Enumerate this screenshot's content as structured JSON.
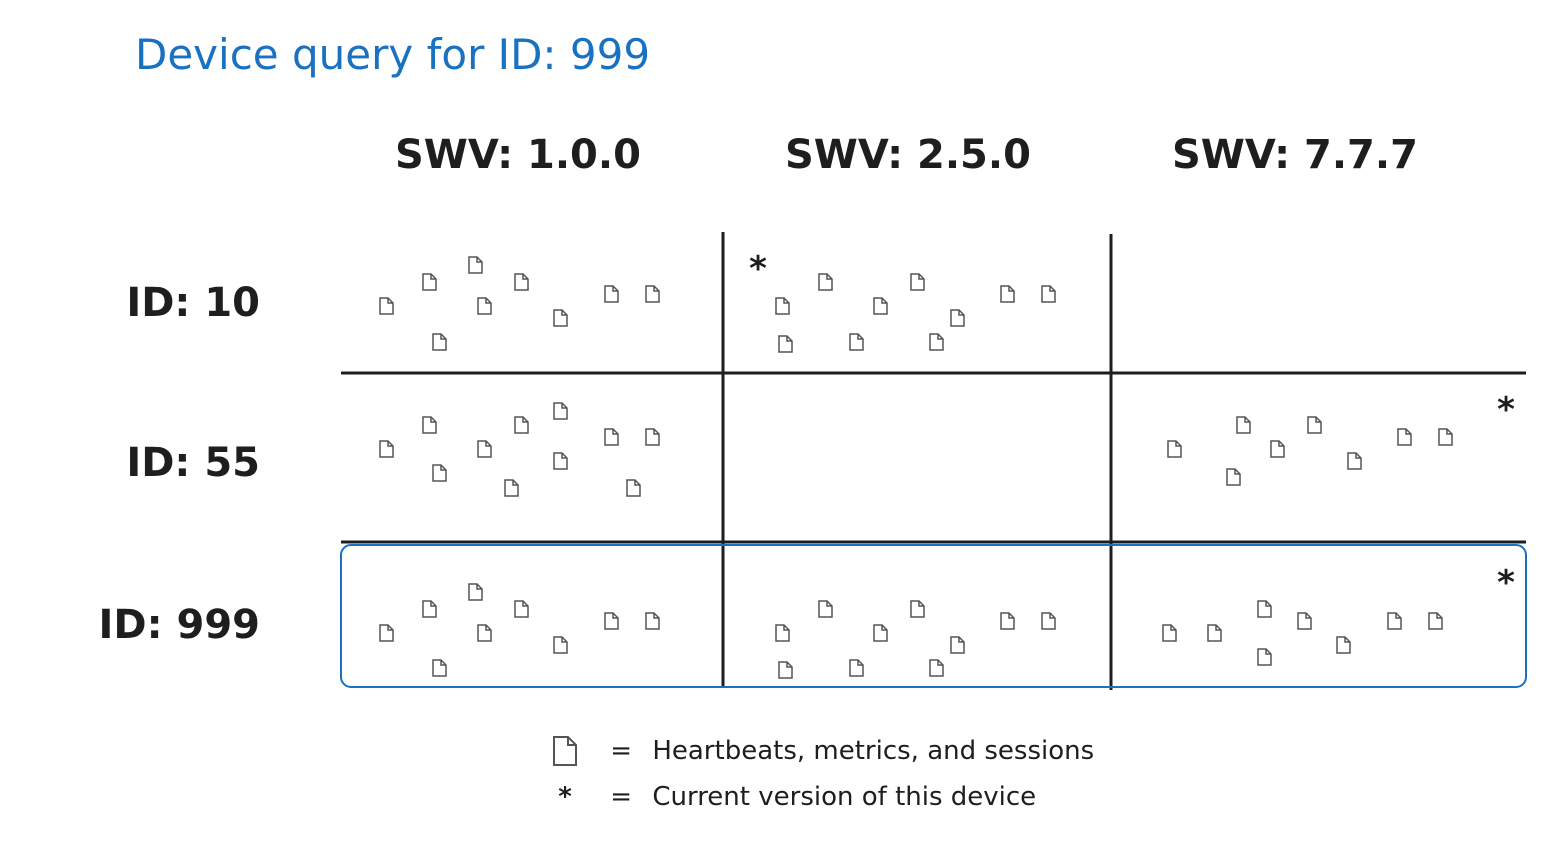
{
  "title": "Device query for ID: 999",
  "columns": [
    "SWV: 1.0.0",
    "SWV: 2.5.0",
    "SWV: 7.7.7"
  ],
  "rows": [
    {
      "label": "ID: 10",
      "doc_counts": [
        9,
        10,
        0
      ],
      "current_version_column": 1
    },
    {
      "label": "ID: 55",
      "doc_counts": [
        11,
        0,
        8
      ],
      "current_version_column": 2
    },
    {
      "label": "ID: 999",
      "doc_counts": [
        9,
        10,
        8
      ],
      "current_version_column": 2,
      "highlighted": true
    }
  ],
  "highlight_color": "#1971c2",
  "icons": {
    "document": "document-icon",
    "current": "asterisk-icon"
  },
  "legend": [
    {
      "icon": "document-icon",
      "symbol": "=",
      "text": "Heartbeats, metrics, and sessions"
    },
    {
      "icon": "asterisk-icon",
      "symbol": "=",
      "text": "Current version of this device"
    }
  ]
}
